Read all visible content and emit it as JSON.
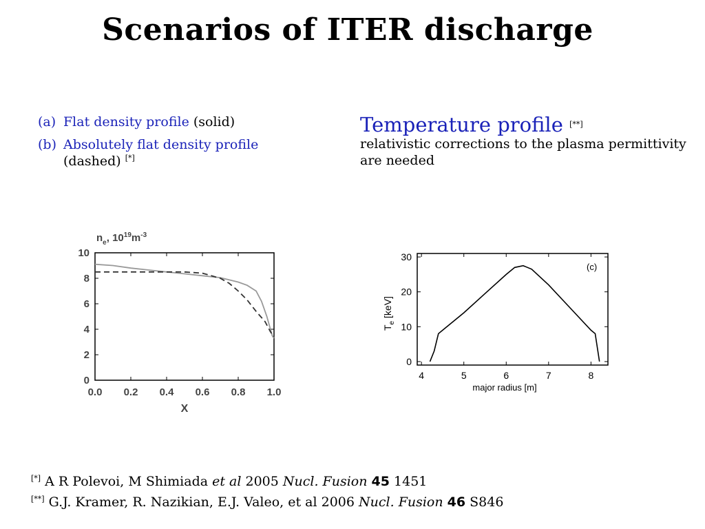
{
  "slide": {
    "title": "Scenarios of ITER discharge"
  },
  "left_text": {
    "item_a": {
      "tag": "(a)",
      "blue_text": "Flat density profile",
      "rest": " (solid)"
    },
    "item_b": {
      "tag": "(b)",
      "blue_text": "Absolutely flat density profile",
      "rest": "(dashed) ",
      "ref": "[*]"
    }
  },
  "right_text": {
    "heading": "Temperature profile",
    "heading_ref": "[**]",
    "body": "relativistic corrections to the plasma permittivity are needed"
  },
  "references": [
    {
      "marker": "[*]",
      "authors": " A R Polevoi, M Shimiada ",
      "etal": "et al",
      "year": " 2005 ",
      "journal": "Nucl. Fusion",
      "volume": "45",
      "page": " 1451"
    },
    {
      "marker": "[**]",
      "authors": " G.J. Kramer, R. Nazikian, E.J. Valeo, et al 2006 ",
      "journal": "Nucl. Fusion",
      "volume": "46",
      "page": " S846"
    }
  ],
  "chart_data": [
    {
      "type": "line",
      "title": "",
      "ylabel": "n_e, 10^19 m^-3",
      "xlabel": "X",
      "xlim": [
        0,
        1
      ],
      "ylim": [
        0,
        10
      ],
      "xticks": [
        "0.0",
        "0.2",
        "0.4",
        "0.6",
        "0.8",
        "1.0"
      ],
      "yticks": [
        "0",
        "2",
        "4",
        "6",
        "8",
        "10"
      ],
      "grid": false,
      "series": [
        {
          "style": "solid",
          "color": "#999999",
          "x": [
            0,
            0.1,
            0.2,
            0.3,
            0.4,
            0.5,
            0.6,
            0.7,
            0.8,
            0.85,
            0.9,
            0.93,
            0.96,
            0.98,
            0.99,
            1.0
          ],
          "y": [
            9.1,
            9.0,
            8.8,
            8.65,
            8.5,
            8.35,
            8.2,
            8.05,
            7.7,
            7.45,
            7.0,
            6.2,
            5.0,
            4.0,
            3.5,
            3.3
          ]
        },
        {
          "style": "dashed",
          "color": "#333333",
          "x": [
            0,
            0.1,
            0.2,
            0.3,
            0.4,
            0.5,
            0.6,
            0.7,
            0.75,
            0.8,
            0.85,
            0.9,
            0.95,
            0.98,
            1.0
          ],
          "y": [
            8.5,
            8.5,
            8.5,
            8.5,
            8.5,
            8.5,
            8.4,
            8.0,
            7.6,
            7.0,
            6.3,
            5.4,
            4.6,
            3.8,
            3.4
          ]
        }
      ]
    },
    {
      "type": "line",
      "title": "",
      "annotation": "(c)",
      "ylabel": "T_e [keV]",
      "xlabel": "major radius [m]",
      "xlim": [
        3.9,
        8.4
      ],
      "ylim": [
        -1,
        31
      ],
      "xticks": [
        "4",
        "5",
        "6",
        "7",
        "8"
      ],
      "yticks": [
        "0",
        "10",
        "20",
        "30"
      ],
      "grid": false,
      "series": [
        {
          "style": "solid",
          "color": "#000000",
          "x": [
            4.2,
            4.3,
            4.4,
            4.5,
            5.0,
            5.5,
            6.0,
            6.2,
            6.4,
            6.6,
            7.0,
            7.5,
            8.0,
            8.1,
            8.2
          ],
          "y": [
            0,
            3,
            8,
            9,
            14,
            19.5,
            25,
            27,
            27.5,
            26.5,
            22,
            15.5,
            9,
            8,
            0
          ]
        }
      ]
    }
  ]
}
